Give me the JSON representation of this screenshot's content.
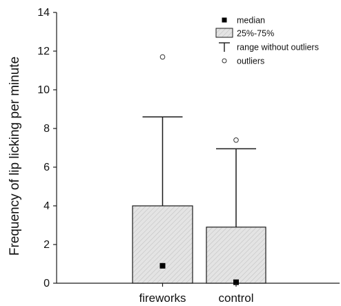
{
  "chart_data": {
    "type": "box",
    "title": "",
    "xlabel": "",
    "ylabel": "Frequency of lip licking per minute",
    "ylim": [
      0,
      14
    ],
    "yticks": [
      0,
      2,
      4,
      6,
      8,
      10,
      12,
      14
    ],
    "grid": false,
    "legend_position": "top-right",
    "categories": [
      "fireworks",
      "control"
    ],
    "boxes": [
      {
        "category": "fireworks",
        "median": 0.9,
        "q1": 0,
        "q3": 4.0,
        "whisker_high": 8.6,
        "outliers": [
          11.7
        ]
      },
      {
        "category": "control",
        "median": 0.05,
        "q1": 0,
        "q3": 2.9,
        "whisker_high": 6.95,
        "outliers": [
          7.4
        ]
      }
    ],
    "legend": [
      {
        "key": "median",
        "label": "median"
      },
      {
        "key": "iqr",
        "label": "25%-75%"
      },
      {
        "key": "range",
        "label": "range without outliers"
      },
      {
        "key": "outliers",
        "label": "outliers"
      }
    ],
    "colors": {
      "box_fill": "#e4e4e4",
      "hatch": "#bdbdbd",
      "stroke": "#1a1a1a"
    }
  }
}
